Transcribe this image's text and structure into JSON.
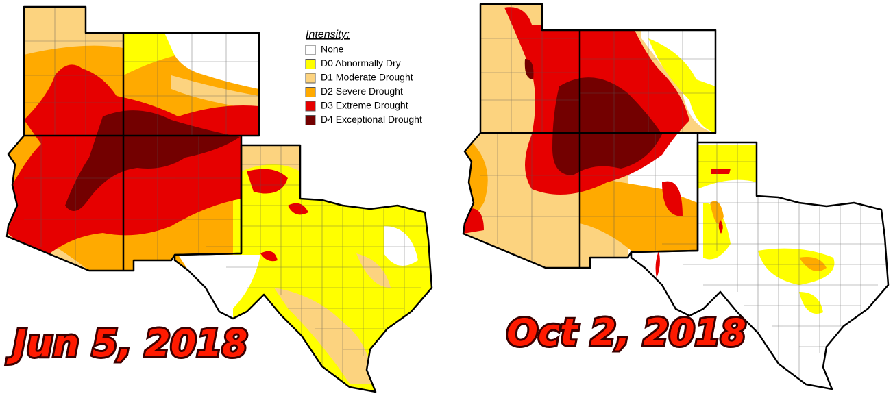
{
  "legend": {
    "title": "Intensity:",
    "items": [
      {
        "label": "None",
        "color": "#ffffff"
      },
      {
        "label": "D0 Abnormally Dry",
        "color": "#ffff00"
      },
      {
        "label": "D1 Moderate Drought",
        "color": "#fcd37f"
      },
      {
        "label": "D2 Severe Drought",
        "color": "#ffaa00"
      },
      {
        "label": "D3 Extreme Drought",
        "color": "#e60000"
      },
      {
        "label": "D4 Exceptional Drought",
        "color": "#730000"
      }
    ]
  },
  "maps": [
    {
      "date": "Jun 5, 2018"
    },
    {
      "date": "Oct 2, 2018"
    }
  ]
}
